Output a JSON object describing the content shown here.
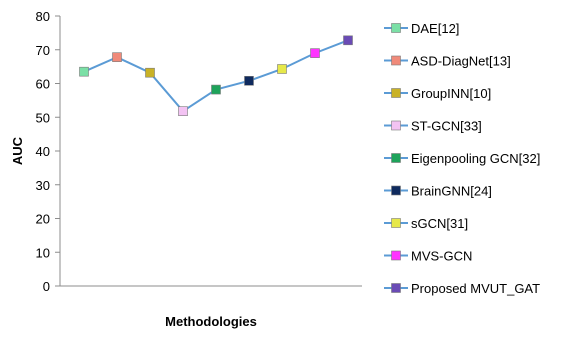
{
  "chart_data": {
    "type": "line",
    "title": "",
    "xlabel": "Methodologies",
    "ylabel": "AUC",
    "ylim": [
      0,
      80
    ],
    "yticks": [
      0,
      10,
      20,
      30,
      40,
      50,
      60,
      70,
      80
    ],
    "grid": false,
    "legend_position": "right",
    "line_color": "#5b9bd5",
    "points": [
      {
        "name": "DAE[12]",
        "value": 63.5,
        "color": "#7be0a6"
      },
      {
        "name": "ASD-DiagNet[13]",
        "value": 67.8,
        "color": "#f08a7a"
      },
      {
        "name": "GroupINN[10]",
        "value": 63.2,
        "color": "#c9b227"
      },
      {
        "name": "ST-GCN[33]",
        "value": 51.8,
        "color": "#f3c3f3"
      },
      {
        "name": "Eigenpooling GCN[32]",
        "value": 58.2,
        "color": "#1ea35a"
      },
      {
        "name": "BrainGNN[24]",
        "value": 60.8,
        "color": "#0f2a5e"
      },
      {
        "name": "sGCN[31]",
        "value": 64.3,
        "color": "#e6e84a"
      },
      {
        "name": "MVS-GCN",
        "value": 69.0,
        "color": "#ff33ff"
      },
      {
        "name": "Proposed MVUT_GAT",
        "value": 72.8,
        "color": "#6a4bb5"
      }
    ]
  }
}
